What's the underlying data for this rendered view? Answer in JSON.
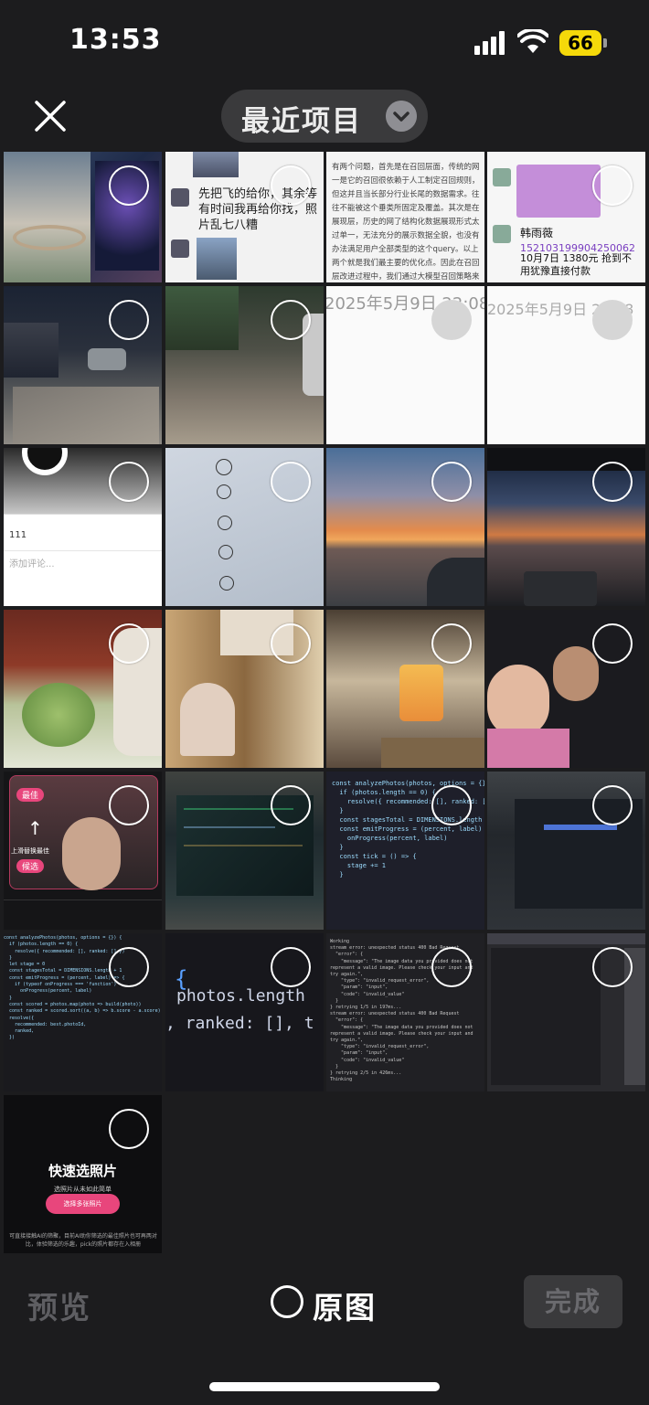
{
  "status_bar": {
    "time": "13:53",
    "battery": "66"
  },
  "header": {
    "title": "最近项目"
  },
  "photos": {
    "p1": {},
    "p2": {
      "text": "先把飞的给你，其余等有时间我再给你找，照片乱七八糟"
    },
    "p3": {
      "text": "有两个问题，首先是在召回层面，传统的网一是它的召回很依赖于人工制定召回规则，但这并且当长部分行业长尾的数据需求。往往不能被这个垂类所固定及覆盖。其次是在展现层，历史的网了结构化数据展现形式太过单一，无法充分的展示数据全貌，也没有办法满足用户全部类型的这个query。以上两个就是我们最主要的优化点。因此在召回层改进过程中，我们通过大模型召回策略来根据数据库中的图标，自动匹配用户需求，进行数据组装及展现，摒除了人工规则"
    },
    "p4": {
      "name": "韩雨薇",
      "line1": "152103199904250062",
      "line2": "10月7日 1380元 抢到不用犹豫直接付款"
    },
    "p7": {
      "timestamp": "2025年5月9日 22:08"
    },
    "p8": {
      "timestamp": "2025年5月9日 22:08"
    },
    "p9": {
      "count": "111",
      "input": "添加评论..."
    },
    "p19": {
      "label": "上滑替换最佳",
      "btn1": "最佳",
      "btn2": "候选"
    },
    "p22": {
      "code": "const analyzePhotos(photos, options = {}) {\n  if (photos.length == 0) {\n    resolve({ recommended: [], ranked: [] })\n  }\n  const stagesTotal = DIMENSIONS.length + 1\n  const emitProgress = (percent, label) => {\n    onProgress(percent, label)\n  }\n  const tick = () => {\n    stage += 1\n  }"
    },
    "p23": {
      "code": "const analyzePhotos(photos, options = {}) {\n  if (photos.length == 0) {\n    resolve({ recommended: [], ranked: [] })\n  }\n  let stage = 0\n  const stagesTotal = DIMENSIONS.length + 1\n  const emitProgress = (percent, label) => {\n    if (typeof onProgress === 'function')\n      onProgress(percent, label)\n  }\n  const scored = photos.map(photo => build(photo))\n  const ranked = scored.sort((a, b) => b.score - a.score)\n  resolve({\n    recommended: best.photoId,\n    ranked,\n  })"
    },
    "p24": {
      "code1": "photos.length",
      "code2": ", ranked: [], t"
    },
    "p25": {
      "log": "Working\nstream error: unexpected status 400 Bad Request\n  \"error\": {\n    \"message\": \"The image data you provided does not represent a valid image. Please check your input and try again.\",\n    \"type\": \"invalid_request_error\",\n    \"param\": \"input\",\n    \"code\": \"invalid_value\"\n  }\n} retrying 1/5 in 197ms...\nstream error: unexpected status 400 Bad Request\n  \"error\": {\n    \"message\": \"The image data you provided does not represent a valid image. Please check your input and try again.\",\n    \"type\": \"invalid_request_error\",\n    \"param\": \"input\",\n    \"code\": \"invalid_value\"\n  }\n} retrying 2/5 in 426ms...\nThinking"
    },
    "p27": {
      "title": "快速选照片",
      "subtitle": "选照片从未如此简单",
      "button": "选择多张照片",
      "desc": "可直接接触AI的筛聚，目前AI助你筛选的最佳照片也可再两对比，体验筛选的乐趣，pick的照片都存在入相册"
    }
  },
  "bottom_bar": {
    "preview": "预览",
    "original": "原图",
    "done": "完成"
  }
}
